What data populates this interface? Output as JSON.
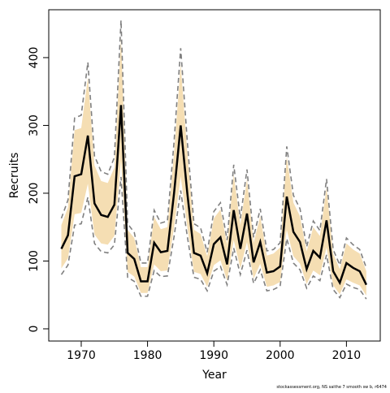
{
  "chart_data": {
    "type": "line",
    "xlabel": "Year",
    "ylabel": "Recruits",
    "footnote": "stockassessment.org, NS saithe 7 smooth sw b, r6474",
    "x": [
      1967,
      1968,
      1969,
      1970,
      1971,
      1972,
      1973,
      1974,
      1975,
      1976,
      1977,
      1978,
      1979,
      1980,
      1981,
      1982,
      1983,
      1984,
      1985,
      1986,
      1987,
      1988,
      1989,
      1990,
      1991,
      1992,
      1993,
      1994,
      1995,
      1996,
      1997,
      1998,
      1999,
      2000,
      2001,
      2002,
      2003,
      2004,
      2005,
      2006,
      2007,
      2008,
      2009,
      2010,
      2011,
      2012,
      2013
    ],
    "values": [
      118,
      138,
      225,
      228,
      285,
      185,
      168,
      165,
      183,
      330,
      112,
      103,
      70,
      70,
      127,
      113,
      115,
      200,
      300,
      200,
      112,
      108,
      82,
      125,
      135,
      95,
      175,
      118,
      170,
      98,
      128,
      83,
      85,
      92,
      195,
      143,
      128,
      88,
      115,
      105,
      160,
      85,
      68,
      97,
      90,
      85,
      65
    ],
    "color": "#000000",
    "band": {
      "color": "#f5deb3",
      "lower": [
        89,
        104,
        169,
        171,
        214,
        139,
        126,
        124,
        137,
        248,
        84,
        77,
        53,
        53,
        95,
        85,
        86,
        150,
        225,
        150,
        84,
        81,
        62,
        94,
        101,
        71,
        131,
        89,
        128,
        74,
        96,
        62,
        64,
        69,
        146,
        107,
        96,
        66,
        86,
        79,
        120,
        64,
        51,
        73,
        68,
        64,
        49
      ],
      "upper": [
        153,
        179,
        293,
        296,
        371,
        241,
        218,
        215,
        238,
        429,
        146,
        134,
        91,
        91,
        165,
        147,
        150,
        260,
        390,
        260,
        146,
        140,
        107,
        163,
        176,
        124,
        228,
        153,
        221,
        127,
        166,
        108,
        111,
        120,
        254,
        186,
        166,
        114,
        150,
        137,
        208,
        111,
        88,
        126,
        117,
        111,
        85
      ]
    },
    "dashed": {
      "color": "#808080",
      "lower": [
        80,
        94,
        153,
        155,
        194,
        126,
        114,
        112,
        124,
        224,
        76,
        70,
        48,
        48,
        86,
        77,
        78,
        136,
        204,
        136,
        76,
        73,
        56,
        85,
        92,
        65,
        119,
        80,
        116,
        67,
        87,
        56,
        58,
        63,
        133,
        97,
        87,
        60,
        78,
        71,
        109,
        58,
        46,
        66,
        61,
        58,
        44
      ],
      "upper": [
        163,
        190,
        311,
        315,
        393,
        255,
        232,
        228,
        253,
        455,
        155,
        142,
        97,
        97,
        175,
        156,
        159,
        276,
        414,
        276,
        155,
        149,
        113,
        173,
        186,
        131,
        242,
        163,
        235,
        135,
        177,
        115,
        117,
        127,
        269,
        197,
        177,
        121,
        159,
        145,
        221,
        117,
        94,
        134,
        124,
        117,
        90
      ]
    },
    "xlim": [
      1965.1,
      2015.1
    ],
    "ylim": [
      -18,
      470.6
    ],
    "xticks": [
      1970,
      1980,
      1990,
      2000,
      2010
    ],
    "yticks": [
      0,
      100,
      200,
      300,
      400
    ]
  }
}
